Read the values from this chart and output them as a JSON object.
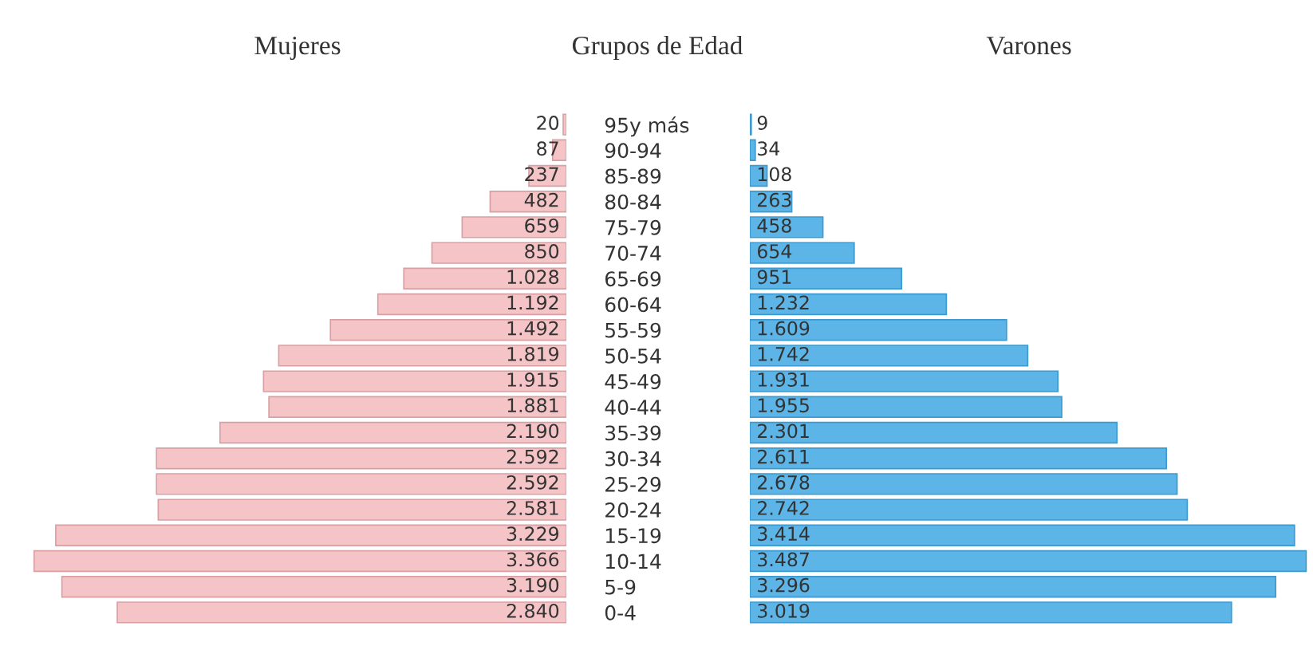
{
  "chart_data": [
    {
      "type": "bar",
      "orientation": "horizontal",
      "title": "Mujeres",
      "tick_labels": "y",
      "xlim": [
        3400,
        0
      ],
      "color": "#f5c4c6",
      "categories": [
        "95y más",
        "90-94",
        "85-89",
        "80-84",
        "75-79",
        "70-74",
        "65-69",
        "60-64",
        "55-59",
        "50-54",
        "45-49",
        "40-44",
        "35-39",
        "30-34",
        "25-29",
        "20-24",
        "15-19",
        "10-14",
        "5-9",
        "0-4"
      ],
      "values": [
        20,
        87,
        237,
        482,
        659,
        850,
        1028,
        1192,
        1492,
        1819,
        1915,
        1881,
        2190,
        2592,
        2592,
        2581,
        3229,
        3366,
        3190,
        2840
      ],
      "value_labels": [
        "20",
        "87",
        "237",
        "482",
        "659",
        "850",
        "1.028",
        "1.192",
        "1.492",
        "1.819",
        "1.915",
        "1.881",
        "2.190",
        "2.592",
        "2.592",
        "2.581",
        "3.229",
        "3.366",
        "3.190",
        "2.840"
      ]
    },
    {
      "type": "bar",
      "orientation": "horizontal",
      "title": "Varones",
      "ylabel": "Grupos de Edad",
      "tick_labels": false,
      "xlim": [
        0,
        3500
      ],
      "color": "#5cb5e6",
      "categories": [
        null,
        null,
        null,
        null,
        null,
        null,
        null,
        null,
        null,
        null,
        null,
        null,
        null,
        null,
        null,
        null,
        null,
        null,
        null,
        null
      ],
      "values": [
        9,
        34,
        108,
        263,
        458,
        654,
        951,
        1232,
        1609,
        1742,
        1931,
        1955,
        2301,
        2611,
        2678,
        2742,
        3414,
        3487,
        3296,
        3019
      ],
      "value_labels": [
        "9",
        "34",
        "108",
        "263",
        "458",
        "654",
        "951",
        "1.232",
        "1.609",
        "1.742",
        "1.931",
        "1.955",
        "2.301",
        "2.611",
        "2.678",
        "2.742",
        "3.414",
        "3.487",
        "3.296",
        "3.019"
      ]
    }
  ]
}
